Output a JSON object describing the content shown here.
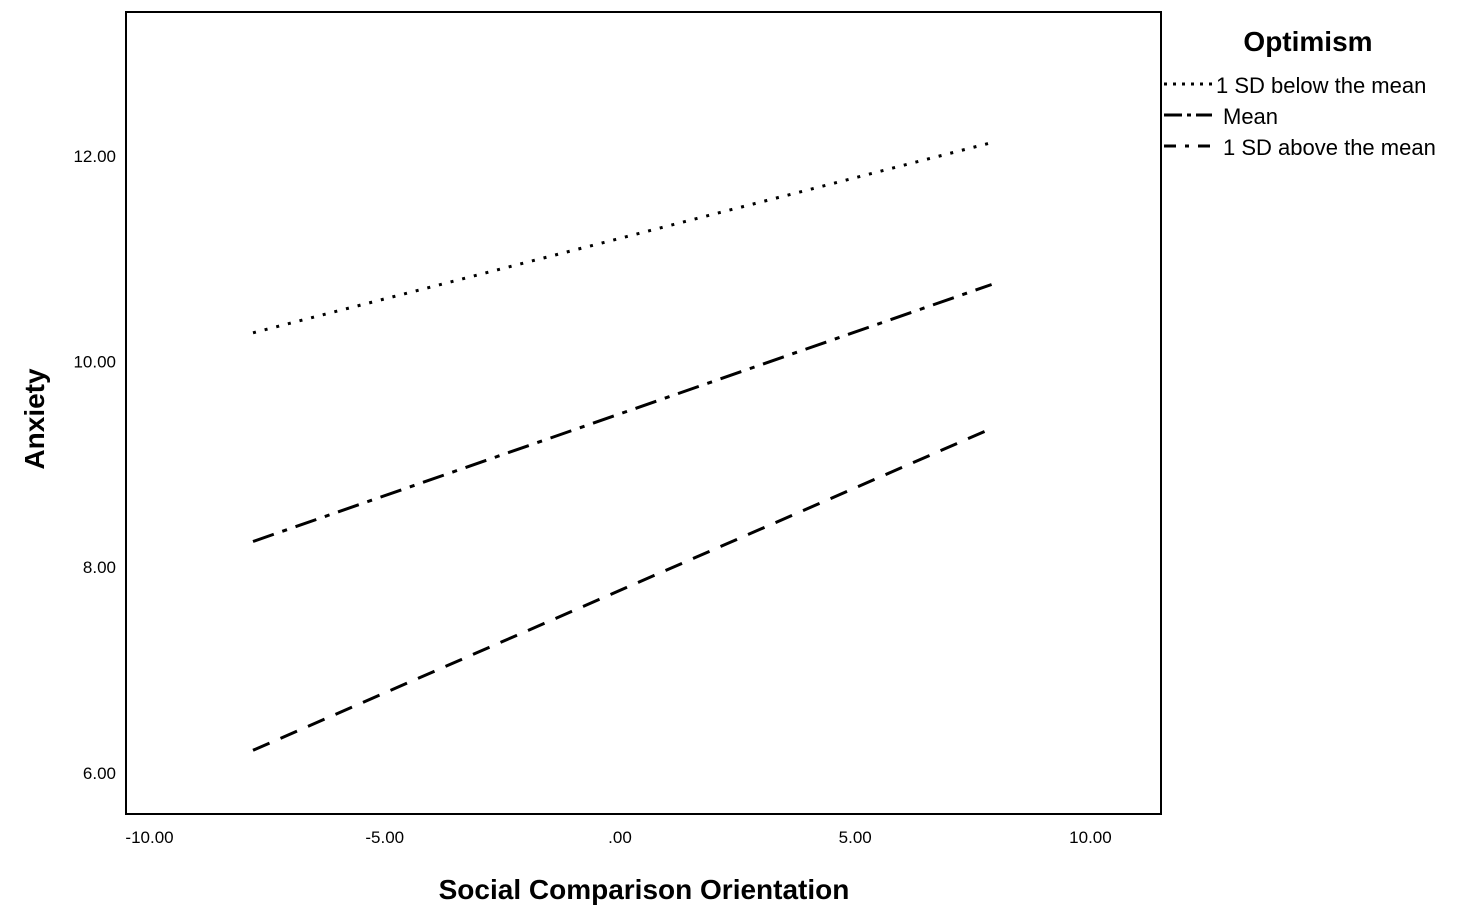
{
  "chart_data": {
    "type": "line",
    "xlabel": "Social Comparison Orientation",
    "ylabel": "Anxiety",
    "xlim": [
      -10.5,
      11.5
    ],
    "ylim": [
      5.6,
      13.4
    ],
    "xticks": [
      -10,
      -5,
      0,
      5,
      10
    ],
    "xtick_labels": [
      "-10.00",
      "-5.00",
      ".00",
      "5.00",
      "10.00"
    ],
    "yticks": [
      6,
      8,
      10,
      12
    ],
    "ytick_labels": [
      "6.00",
      "8.00",
      "10.00",
      "12.00"
    ],
    "grid": false,
    "legend": {
      "title": "Optimism",
      "placement": "top-right, outside plot"
    },
    "series": [
      {
        "name": "1 SD below the mean",
        "line_style": "dotted",
        "color": "#000000",
        "x": [
          -7.8,
          7.9
        ],
        "y": [
          10.28,
          12.13
        ]
      },
      {
        "name": "Mean",
        "line_style": "dash-dot",
        "color": "#000000",
        "x": [
          -7.8,
          7.9
        ],
        "y": [
          8.25,
          10.75
        ]
      },
      {
        "name": "1 SD above the mean",
        "line_style": "dashed",
        "color": "#000000",
        "x": [
          -7.8,
          7.9
        ],
        "y": [
          6.22,
          9.35
        ]
      }
    ]
  }
}
